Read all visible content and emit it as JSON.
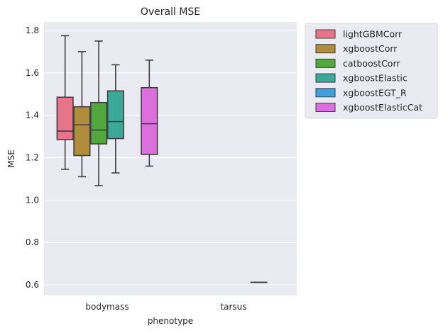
{
  "chart_data": {
    "type": "box",
    "title": "Overall MSE",
    "xlabel": "phenotype",
    "ylabel": "MSE",
    "categories": [
      "bodymass",
      "tarsus"
    ],
    "ylim": [
      0.55,
      1.84
    ],
    "yticks": [
      0.6,
      0.8,
      1.0,
      1.2,
      1.4,
      1.6,
      1.8
    ],
    "grid": true,
    "legend_position": "outside-top-right",
    "series": [
      {
        "name": "lightGBMCorr",
        "color": "#e8748a",
        "boxes": [
          {
            "category": "bodymass",
            "whisker_low": 1.145,
            "q1": 1.285,
            "median": 1.325,
            "q3": 1.485,
            "whisker_high": 1.775
          },
          null
        ]
      },
      {
        "name": "xgboostCorr",
        "color": "#b08d3a",
        "boxes": [
          {
            "category": "bodymass",
            "whisker_low": 1.11,
            "q1": 1.21,
            "median": 1.355,
            "q3": 1.44,
            "whisker_high": 1.7
          },
          null
        ]
      },
      {
        "name": "catboostCorr",
        "color": "#52a83c",
        "boxes": [
          {
            "category": "bodymass",
            "whisker_low": 1.068,
            "q1": 1.265,
            "median": 1.33,
            "q3": 1.46,
            "whisker_high": 1.75
          },
          null
        ]
      },
      {
        "name": "xgboostElastic",
        "color": "#3ba89a",
        "boxes": [
          {
            "category": "bodymass",
            "whisker_low": 1.128,
            "q1": 1.29,
            "median": 1.37,
            "q3": 1.515,
            "whisker_high": 1.638
          },
          null
        ]
      },
      {
        "name": "xgboostEGT_R",
        "color": "#3f9fdf",
        "boxes": [
          null,
          {
            "category": "tarsus",
            "whisker_low": 0.612,
            "q1": 0.612,
            "median": 0.612,
            "q3": 0.612,
            "whisker_high": 0.612
          }
        ]
      },
      {
        "name": "xgboostElasticCat",
        "color": "#dc6fe0",
        "boxes": [
          {
            "category": "bodymass",
            "whisker_low": 1.16,
            "q1": 1.215,
            "median": 1.36,
            "q3": 1.53,
            "whisker_high": 1.66
          },
          null
        ]
      }
    ]
  }
}
